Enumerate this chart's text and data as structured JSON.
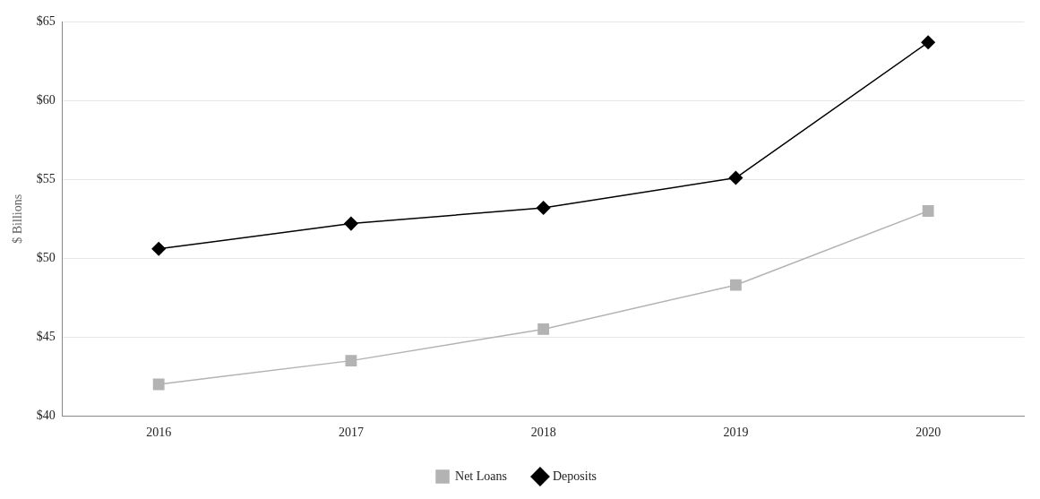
{
  "chart_data": {
    "type": "line",
    "ylabel": "$ Billions",
    "categories": [
      "2016",
      "2017",
      "2018",
      "2019",
      "2020"
    ],
    "series": [
      {
        "name": "Net Loans",
        "color": "#b3b3b3",
        "marker": "square",
        "values": [
          42.0,
          43.5,
          45.5,
          48.3,
          53.0
        ]
      },
      {
        "name": "Deposits",
        "color": "#000000",
        "marker": "diamond",
        "values": [
          50.6,
          52.2,
          53.2,
          55.1,
          63.7
        ]
      }
    ],
    "ylim": [
      40,
      65
    ],
    "yticks": [
      {
        "value": 40,
        "label": "$40"
      },
      {
        "value": 45,
        "label": "$45"
      },
      {
        "value": 50,
        "label": "$50"
      },
      {
        "value": 55,
        "label": "$55"
      },
      {
        "value": 60,
        "label": "$60"
      },
      {
        "value": 65,
        "label": "$65"
      }
    ],
    "grid": "y",
    "legend": "bottom",
    "line_style": "solid"
  }
}
